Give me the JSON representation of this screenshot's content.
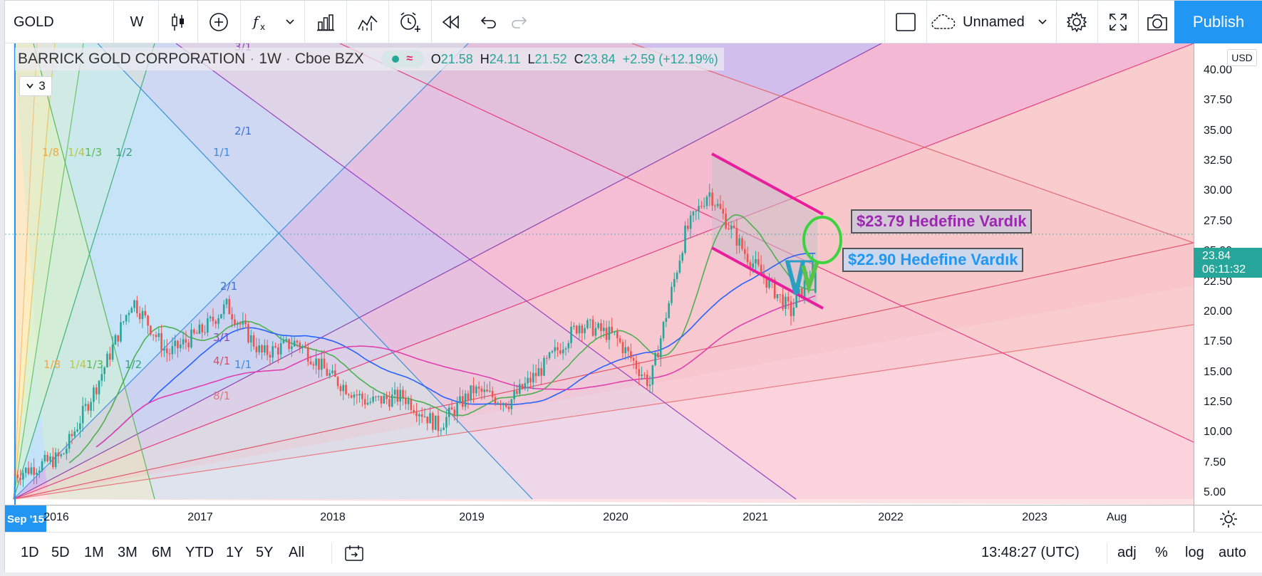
{
  "toolbar": {
    "symbol": "GOLD",
    "interval": "W",
    "layout_name": "Unnamed",
    "publish_label": "Publish",
    "icons": [
      "candles-icon",
      "add-compare-icon",
      "indicators-fx-icon",
      "chevron-down-icon",
      "bar-chart-icon",
      "templates-icon",
      "alert-clock-icon",
      "replay-icon",
      "undo-icon",
      "redo-icon",
      "square-layout-icon",
      "cloud-icon",
      "gear-icon",
      "fullscreen-icon",
      "camera-icon"
    ]
  },
  "legend": {
    "title": "BARRICK GOLD CORPORATION",
    "interval": "1W",
    "exchange": "Cboe BZX",
    "open_label": "O",
    "open": "21.58",
    "high_label": "H",
    "high": "24.11",
    "low_label": "L",
    "low": "21.52",
    "close_label": "C",
    "close": "23.84",
    "change": "+2.59 (+12.19%)",
    "indicator_count": "3"
  },
  "price_axis": {
    "currency": "USD",
    "ticks": [
      "40.00",
      "37.50",
      "35.00",
      "32.50",
      "30.00",
      "27.50",
      "25.00",
      "22.50",
      "20.00",
      "17.50",
      "15.00",
      "12.50",
      "10.00",
      "7.50",
      "5.00"
    ],
    "last_price": "23.84",
    "countdown": "06:11:32"
  },
  "time_axis": {
    "start_label": "Sep '15",
    "ticks": [
      "2016",
      "2017",
      "2018",
      "2019",
      "2020",
      "2021",
      "2022",
      "2023",
      "Aug"
    ]
  },
  "fan_labels": {
    "top": [
      "1/8",
      "1/4",
      "1/3",
      "1/2",
      "1/1",
      "2/1",
      "3/1"
    ],
    "bottom": [
      "1/8",
      "1/4",
      "1/3",
      "1/2",
      "1/1",
      "2/1",
      "3/1",
      "4/1",
      "8/1"
    ]
  },
  "annotations": {
    "target_1": "$23.79 Hedefine Vardık",
    "target_2": "$22.90 Hedefine Vardık"
  },
  "bottom_bar": {
    "ranges": [
      "1D",
      "5D",
      "1M",
      "3M",
      "6M",
      "YTD",
      "1Y",
      "5Y",
      "All"
    ],
    "clock": "13:48:27 (UTC)",
    "options": [
      "adj",
      "%",
      "log",
      "auto"
    ]
  },
  "colors": {
    "accent": "#2196f3",
    "up": "#26a69a",
    "down": "#ef5350",
    "channel": "#e91e9c",
    "target_1": "#9c27b0",
    "target_2": "#2196f3"
  },
  "chart_data": {
    "type": "candlestick",
    "symbol": "BARRICK GOLD CORPORATION",
    "interval": "1W",
    "ylim": [
      5,
      40
    ],
    "y_ticks": [
      5,
      7.5,
      10,
      12.5,
      15,
      17.5,
      20,
      22.5,
      25,
      27.5,
      30,
      32.5,
      35,
      37.5,
      40
    ],
    "last": {
      "open": 21.58,
      "high": 24.11,
      "low": 21.52,
      "close": 23.84
    },
    "approx_close_path": [
      [
        "2015-09",
        6.5
      ],
      [
        "2016-01",
        8.0
      ],
      [
        "2016-04",
        14.0
      ],
      [
        "2016-07",
        21.0
      ],
      [
        "2016-10",
        16.5
      ],
      [
        "2017-01",
        18.5
      ],
      [
        "2017-03",
        20.5
      ],
      [
        "2017-06",
        16.5
      ],
      [
        "2017-09",
        17.5
      ],
      [
        "2017-12",
        14.5
      ],
      [
        "2018-03",
        12.5
      ],
      [
        "2018-06",
        13.0
      ],
      [
        "2018-09",
        10.5
      ],
      [
        "2018-12",
        13.5
      ],
      [
        "2019-03",
        12.5
      ],
      [
        "2019-06",
        15.5
      ],
      [
        "2019-09",
        19.0
      ],
      [
        "2019-12",
        18.0
      ],
      [
        "2020-03",
        14.0
      ],
      [
        "2020-06",
        26.5
      ],
      [
        "2020-08",
        30.0
      ],
      [
        "2020-11",
        25.0
      ],
      [
        "2021-01",
        22.5
      ],
      [
        "2021-03",
        20.0
      ],
      [
        "2021-05",
        23.84
      ]
    ]
  }
}
